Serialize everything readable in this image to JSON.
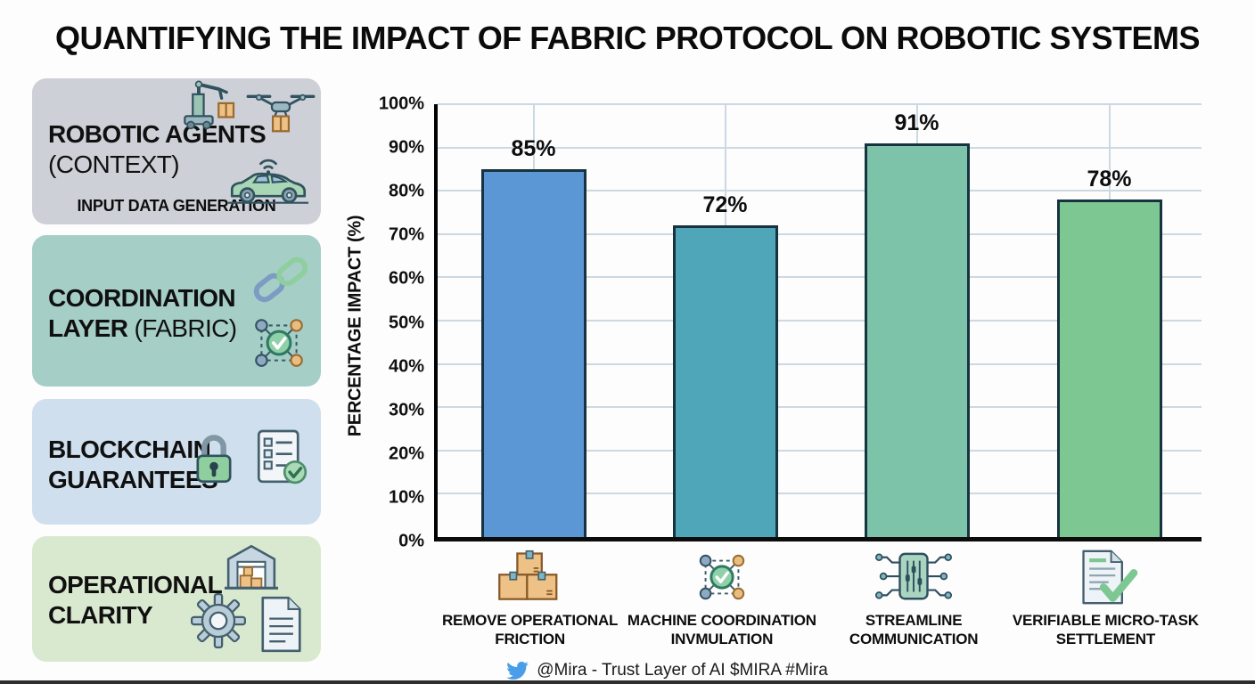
{
  "title": "QUANTIFYING THE IMPACT OF FABRIC PROTOCOL ON ROBOTIC SYSTEMS",
  "sidebar": {
    "boxes": [
      {
        "line1": "ROBOTIC AGENTS",
        "line2": "(CONTEXT)",
        "subtitle": "INPUT DATA GENERATION",
        "bg": "#cdd0d7",
        "icons": [
          "robot-arm-icon",
          "drone-icon",
          "autonomous-car-icon"
        ]
      },
      {
        "line1": "COORDINATION",
        "line2_bold": "LAYER",
        "line2_regular": "(FABRIC)",
        "bg": "#a5cfc6",
        "icons": [
          "chain-link-icon",
          "network-check-icon"
        ]
      },
      {
        "line1": "BLOCKCHAIN",
        "line2": "GUARANTEES",
        "bg": "#cfdfed",
        "icons": [
          "padlock-icon",
          "checklist-icon"
        ]
      },
      {
        "line1": "OPERATIONAL",
        "line2": "CLARITY",
        "bg": "#d9e9d0",
        "icons": [
          "warehouse-icon",
          "gear-icon",
          "document-icon"
        ]
      }
    ]
  },
  "chart_data": {
    "type": "bar",
    "title": "",
    "ylabel": "PERCENTAGE IMPACT (%)",
    "xlabel": "",
    "ylim": [
      0,
      100
    ],
    "grid": true,
    "yticks": [
      "0%",
      "10%",
      "20%",
      "30%",
      "40%",
      "50%",
      "60%",
      "70%",
      "80%",
      "90%",
      "100%"
    ],
    "categories": [
      "REMOVE OPERATIONAL FRICTION",
      "MACHINE COORDINATION INVMULATION",
      "STREAMLINE COMMUNICATION",
      "VERIFIABLE MICRO-TASK SETTLEMENT"
    ],
    "category_lines": [
      [
        "REMOVE OPERATIONAL",
        "FRICTION"
      ],
      [
        "MACHINE COORDINATION",
        "INVMULATION"
      ],
      [
        "STREAMLINE",
        "COMMUNICATION"
      ],
      [
        "VERIFIABLE MICRO-TASK",
        "SETTLEMENT"
      ]
    ],
    "category_icons": [
      "cardboard-boxes-icon",
      "network-check-icon",
      "chip-sliders-icon",
      "doc-check-icon"
    ],
    "values": [
      85,
      72,
      91,
      78
    ],
    "value_labels": [
      "85%",
      "72%",
      "91%",
      "78%"
    ],
    "bar_colors": [
      "#5b97d4",
      "#4fa6b8",
      "#7dc3aa",
      "#7dc792"
    ],
    "gridline_color": "#ccd9e3"
  },
  "footer": {
    "icon": "twitter-icon",
    "text": "@Mira - Trust Layer of AI $MIRA #Mira",
    "icon_color": "#4a9de8"
  }
}
